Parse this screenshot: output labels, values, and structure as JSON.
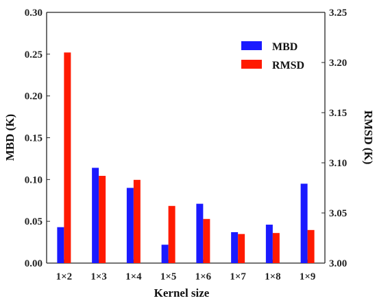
{
  "chart_data": {
    "type": "bar",
    "categories": [
      "1×2",
      "1×3",
      "1×4",
      "1×5",
      "1×6",
      "1×7",
      "1×8",
      "1×9"
    ],
    "xlabel": "Kernel size",
    "ylabel_left": "MBD (K)",
    "ylabel_right": "RMSD (K)",
    "ylim_left": [
      0.0,
      0.3
    ],
    "ylim_right": [
      3.0,
      3.25
    ],
    "yticks_left": [
      "0.00",
      "0.05",
      "0.10",
      "0.15",
      "0.20",
      "0.25",
      "0.30"
    ],
    "yticks_right": [
      "3.00",
      "3.05",
      "3.10",
      "3.15",
      "3.20",
      "3.25"
    ],
    "grid": false,
    "legend_position": "top-right",
    "series": [
      {
        "name": "MBD",
        "axis": "left",
        "color": "#1a1aff",
        "values": [
          0.043,
          0.114,
          0.09,
          0.022,
          0.071,
          0.037,
          0.046,
          0.095
        ]
      },
      {
        "name": "RMSD",
        "axis": "right",
        "color": "#ff1a00",
        "values": [
          3.21,
          3.087,
          3.083,
          3.057,
          3.044,
          3.029,
          3.03,
          3.033
        ]
      }
    ]
  }
}
